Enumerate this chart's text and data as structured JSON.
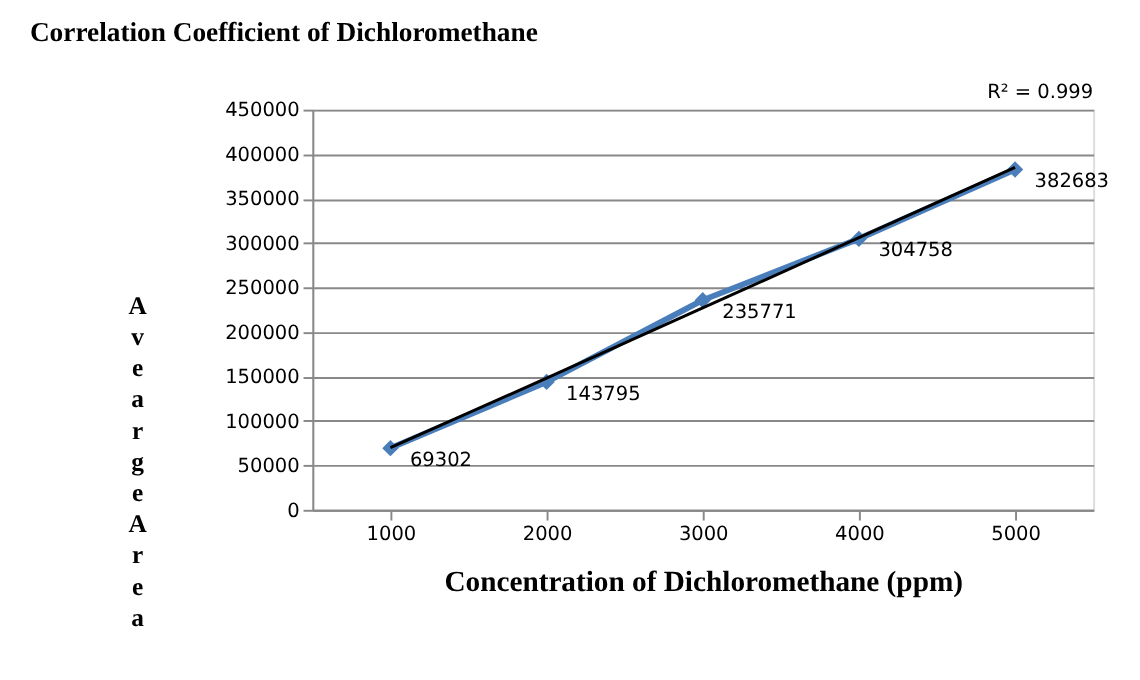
{
  "chart_data": {
    "type": "line",
    "title": "Correlation Coefficient of Dichloromethane",
    "xlabel": "Concentration of Dichloromethane (ppm)",
    "ylabel": "Avearge Area",
    "categories": [
      "1000",
      "2000",
      "3000",
      "4000",
      "5000"
    ],
    "series": [
      {
        "color": "#4a7ebb",
        "values": [
          69302,
          143795,
          235771,
          304758,
          382683
        ],
        "marker": "diamond",
        "data_labels": true
      },
      {
        "color": "#000000",
        "values": [
          70000,
          148000,
          227000,
          306000,
          385000
        ],
        "marker": "none"
      }
    ],
    "ylim": [
      0,
      450000
    ],
    "yticks": [
      0,
      50000,
      100000,
      150000,
      200000,
      250000,
      300000,
      350000,
      400000,
      450000
    ],
    "grid": "y",
    "legend": false,
    "annotations": [
      "R² = 0.999"
    ]
  }
}
